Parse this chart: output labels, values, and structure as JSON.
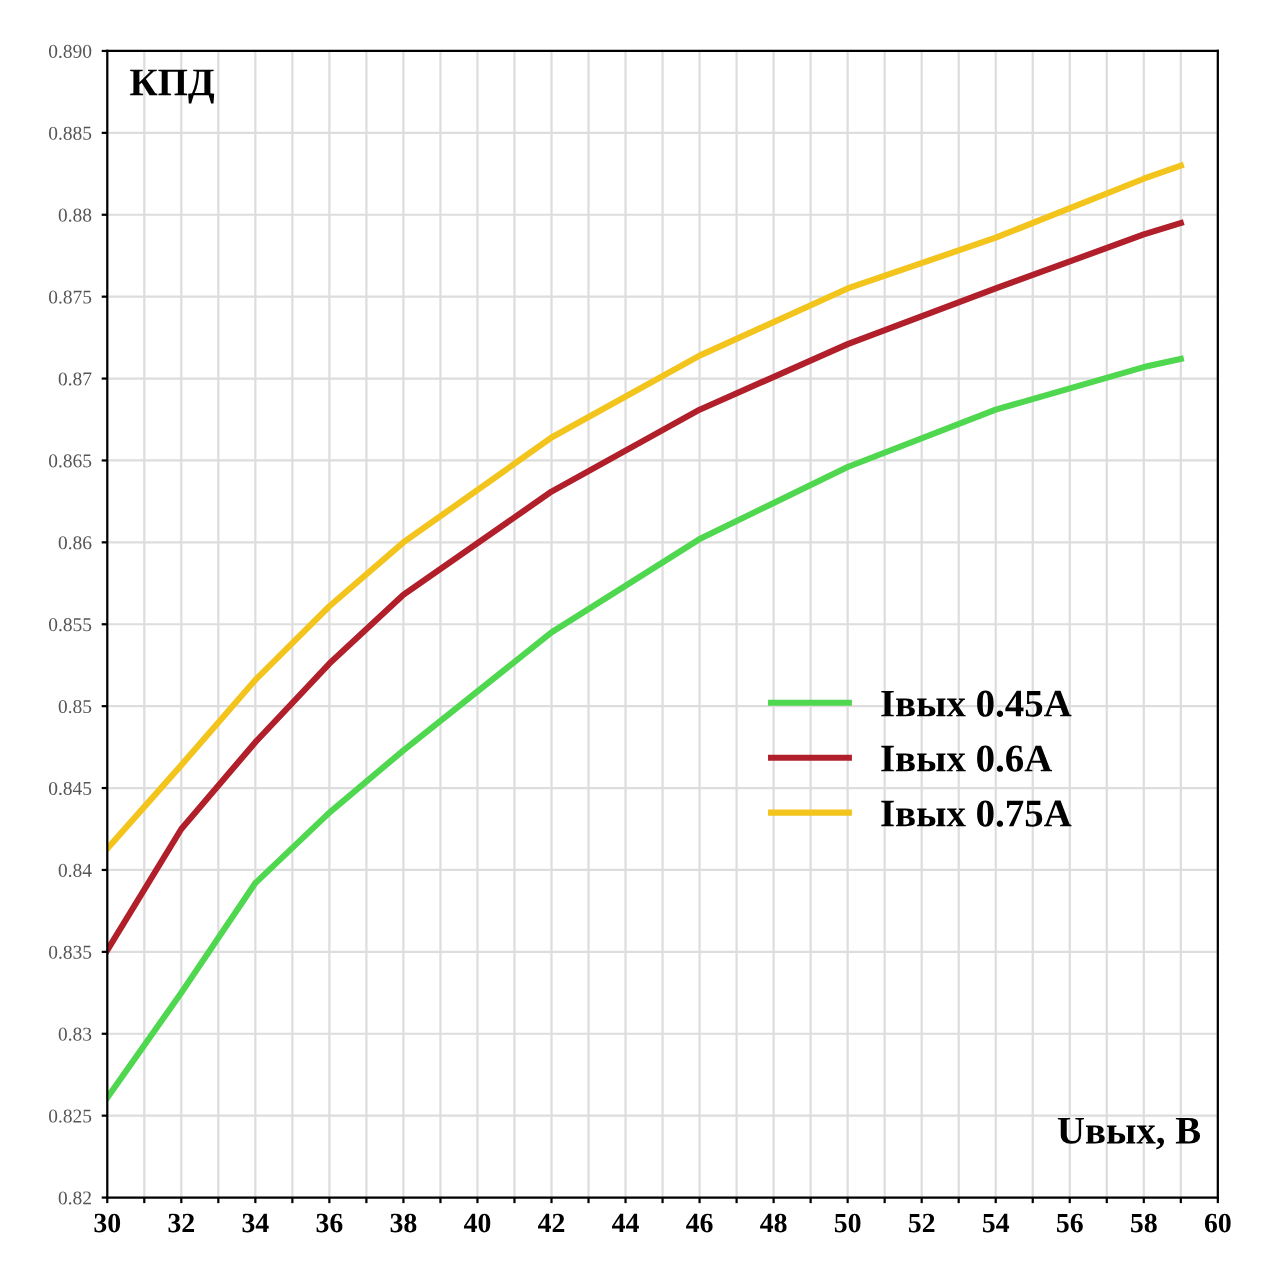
{
  "chart_data": {
    "type": "line",
    "xlabel": "Uвых, В",
    "ylabel": "КПД",
    "xlim": [
      30,
      60
    ],
    "ylim": [
      0.82,
      0.89
    ],
    "xticks": [
      30,
      {
        "value": 31,
        "label": null
      },
      32,
      {
        "value": 33,
        "label": null
      },
      34,
      {
        "value": 35,
        "label": null
      },
      36,
      {
        "value": 37,
        "label": null
      },
      38,
      {
        "value": 39,
        "label": null
      },
      40,
      {
        "value": 41,
        "label": null
      },
      42,
      {
        "value": 43,
        "label": null
      },
      44,
      {
        "value": 45,
        "label": null
      },
      46,
      {
        "value": 47,
        "label": null
      },
      48,
      {
        "value": 49,
        "label": null
      },
      50,
      {
        "value": 51,
        "label": null
      },
      52,
      {
        "value": 53,
        "label": null
      },
      54,
      {
        "value": 55,
        "label": null
      },
      56,
      {
        "value": 57,
        "label": null
      },
      58,
      {
        "value": 59,
        "label": null
      },
      60
    ],
    "yticks": [
      0.82,
      0.825,
      0.83,
      0.835,
      0.84,
      0.845,
      0.85,
      0.855,
      0.86,
      0.865,
      0.87,
      0.875,
      0.88,
      0.885,
      {
        "value": 0.89,
        "label": "0.890"
      }
    ],
    "grid": true,
    "legend": "right",
    "marker": "none",
    "line_style": "solid",
    "x": [
      30,
      32,
      34,
      36,
      38,
      42,
      46,
      50,
      54,
      58,
      59
    ],
    "series": [
      {
        "name": "Iвых 0.45A",
        "color": "#4fd84f",
        "values": [
          0.8261,
          0.8325,
          0.8392,
          0.8435,
          0.8473,
          0.8545,
          0.8602,
          0.8646,
          0.8681,
          0.8707,
          0.8712
        ]
      },
      {
        "name": "Iвых 0.6A",
        "color": "#b01f2a",
        "values": [
          0.8351,
          0.8425,
          0.8478,
          0.8526,
          0.8568,
          0.8631,
          0.8681,
          0.8721,
          0.8755,
          0.8788,
          0.8795
        ]
      },
      {
        "name": "Iвых 0.75A",
        "color": "#f2c41c",
        "values": [
          0.8413,
          0.8464,
          0.8516,
          0.8561,
          0.86,
          0.8664,
          0.8714,
          0.8755,
          0.8786,
          0.8822,
          0.883
        ]
      }
    ]
  }
}
